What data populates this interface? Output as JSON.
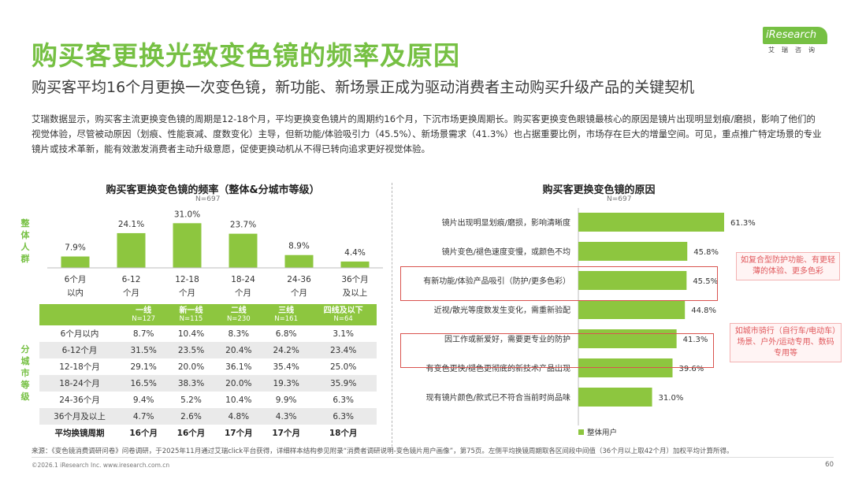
{
  "header": {
    "title": "购买客更换光致变色镜的频率及原因",
    "subtitle": "购买客平均16个月更换一次变色镜，新功能、新场景正成为驱动消费者主动购买升级产品的关键契机",
    "intro": "艾瑞数据显示，购买客主流更换变色镜的周期是12-18个月，平均更换变色镜片的周期约16个月，下沉市场更换周期长。购买客更换变色眼镜最核心的原因是镜片出现明显划痕/磨损，影响了他们的视觉体验，尽管被动原因（划痕、性能衰减、度数变化）主导，但新功能/体验吸引力（45.5%）、新场景需求（41.3%）也占据重要比例，市场存在巨大的增量空间。可见，重点推广特定场景的专业镜片或技术革新，能有效激发消费者主动升级意愿，促使更换动机从不得已转向追求更好视觉体验。"
  },
  "logo": {
    "name": "iResearch",
    "sub": "艾瑞咨询"
  },
  "colors": {
    "accent": "#76c043",
    "bar": "#8dc63f",
    "highlight": "#d9534f"
  },
  "left_chart": {
    "title": "购买客更换变色镜的频率（整体&分城市等级）",
    "n": "N=697",
    "side_overall": "整体人群",
    "side_city": "分城市等级"
  },
  "city_table": {
    "headers": [
      {
        "name": "一线",
        "n": "N=127"
      },
      {
        "name": "新一线",
        "n": "N=115"
      },
      {
        "name": "二线",
        "n": "N=230"
      },
      {
        "name": "三线",
        "n": "N=161"
      },
      {
        "name": "四线及以下",
        "n": "N=64"
      }
    ],
    "rows": [
      {
        "label": "6个月以内",
        "values": [
          "8.7%",
          "10.4%",
          "8.3%",
          "6.8%",
          "3.1%"
        ]
      },
      {
        "label": "6-12个月",
        "values": [
          "31.5%",
          "23.5%",
          "20.4%",
          "24.2%",
          "23.4%"
        ]
      },
      {
        "label": "12-18个月",
        "values": [
          "29.1%",
          "20.0%",
          "36.1%",
          "35.4%",
          "25.0%"
        ]
      },
      {
        "label": "18-24个月",
        "values": [
          "16.5%",
          "38.3%",
          "20.0%",
          "19.3%",
          "35.9%"
        ]
      },
      {
        "label": "24-36个月",
        "values": [
          "9.4%",
          "5.2%",
          "10.4%",
          "9.9%",
          "6.3%"
        ]
      },
      {
        "label": "36个月及以上",
        "values": [
          "4.7%",
          "2.6%",
          "4.8%",
          "4.3%",
          "6.3%"
        ]
      }
    ],
    "avg": {
      "label": "平均换镜周期",
      "values": [
        "16个月",
        "16个月",
        "17个月",
        "17个月",
        "18个月"
      ]
    }
  },
  "right_chart": {
    "title": "购买客更换变色镜的原因",
    "n": "N=697",
    "annotation_1": "如复合型防护功能、有更轻薄的体验、更多色彩",
    "annotation_2": "如城市骑行（自行车/电动车）场景、户外/运动专用、数码专用等"
  },
  "chart_data": [
    {
      "type": "bar",
      "title": "购买客更换变色镜的频率（整体&分城市等级）",
      "categories": [
        [
          "6个月",
          "以内"
        ],
        [
          "6-12",
          "个月"
        ],
        [
          "12-18",
          "个月"
        ],
        [
          "18-24",
          "个月"
        ],
        [
          "24-36",
          "个月"
        ],
        [
          "36个月",
          "及以上"
        ]
      ],
      "values": [
        7.9,
        24.1,
        31.0,
        23.7,
        8.9,
        4.4
      ],
      "labels": [
        "7.9%",
        "24.1%",
        "31.0%",
        "23.7%",
        "8.9%",
        "4.4%"
      ],
      "ylim": [
        0,
        35
      ],
      "xlabel": "",
      "ylabel": ""
    },
    {
      "type": "bar",
      "orientation": "horizontal",
      "title": "购买客更换变色镜的原因",
      "categories": [
        "镜片出现明显划痕/磨损，影响清晰度",
        "镜片变色/褪色速度变慢，或颜色不均",
        "有新功能/体验产品吸引（防护/更多色彩）",
        "近视/散光等度数发生变化，需重新验配",
        "因工作或新爱好，需要更专业的防护",
        "有变色更快/褪色更彻底的新技术产品出现",
        "现有镜片颜色/款式已不符合当前时尚品味"
      ],
      "values": [
        61.3,
        45.8,
        45.5,
        44.8,
        41.3,
        39.6,
        31.0
      ],
      "labels": [
        "61.3%",
        "45.8%",
        "45.5%",
        "44.8%",
        "41.3%",
        "39.6%",
        "31.0%"
      ],
      "series_name": "整体用户",
      "xlim": [
        0,
        70
      ]
    }
  ],
  "footer": {
    "source": "来源：《变色镜消费调研问卷》问卷调研，于2025年11月通过艾瑞click平台获得，详细样本结构参见附录“消费者调研说明-变色镜片用户画像”，第75页。左侧平均换镜周期取各区间段中间值（36个月以上取42个月）加权平均计算所得。",
    "copyright": "©2026.1 iResearch Inc.                    www.iresearch.com.cn",
    "page": "60"
  }
}
